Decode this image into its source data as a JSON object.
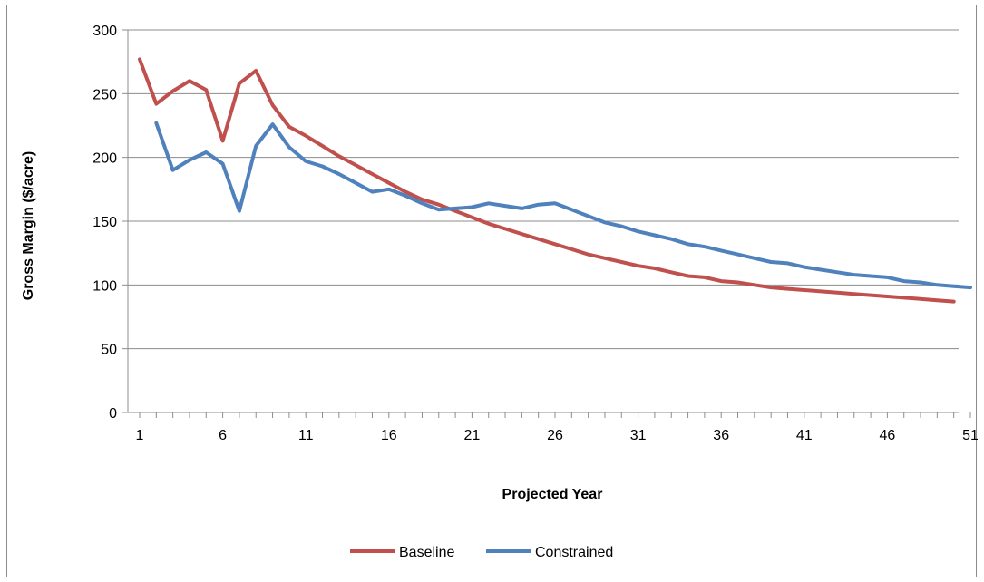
{
  "chart_data": {
    "type": "line",
    "title": "",
    "xlabel": "Projected Year",
    "ylabel": "Gross Margin  ($/acre)",
    "ylim": [
      0,
      300
    ],
    "yticks": [
      "0",
      "50",
      "100",
      "150",
      "200",
      "250",
      "300"
    ],
    "xticks": [
      "1",
      "6",
      "11",
      "16",
      "21",
      "26",
      "31",
      "36",
      "41",
      "46",
      "51"
    ],
    "xlim": [
      1,
      51
    ],
    "grid": "horizontal",
    "legend": "bottom",
    "series": [
      {
        "name": "Baseline",
        "color": "#c0504d",
        "x": [
          1,
          2,
          3,
          4,
          5,
          6,
          7,
          8,
          9,
          10,
          11,
          12,
          13,
          14,
          15,
          16,
          17,
          18,
          19,
          20,
          21,
          22,
          23,
          24,
          25,
          26,
          27,
          28,
          29,
          30,
          31,
          32,
          33,
          34,
          35,
          36,
          37,
          38,
          39,
          40,
          41,
          42,
          43,
          44,
          45,
          46,
          47,
          48,
          49,
          50
        ],
        "y": [
          277,
          242,
          252,
          260,
          253,
          213,
          258,
          268,
          241,
          224,
          217,
          209,
          201,
          194,
          187,
          180,
          173,
          167,
          163,
          158,
          153,
          148,
          144,
          140,
          136,
          132,
          128,
          124,
          121,
          118,
          115,
          113,
          110,
          107,
          106,
          103,
          102,
          100,
          98,
          97,
          96,
          95,
          94,
          93,
          92,
          91,
          90,
          89,
          88,
          87
        ]
      },
      {
        "name": "Constrained",
        "color": "#4f81bd",
        "x": [
          2,
          3,
          4,
          5,
          6,
          7,
          8,
          9,
          10,
          11,
          12,
          13,
          14,
          15,
          16,
          17,
          18,
          19,
          20,
          21,
          22,
          23,
          24,
          25,
          26,
          27,
          28,
          29,
          30,
          31,
          32,
          33,
          34,
          35,
          36,
          37,
          38,
          39,
          40,
          41,
          42,
          43,
          44,
          45,
          46,
          47,
          48,
          49,
          50,
          51
        ],
        "y": [
          227,
          190,
          198,
          204,
          195,
          158,
          209,
          226,
          208,
          197,
          193,
          187,
          180,
          173,
          175,
          170,
          164,
          159,
          160,
          161,
          164,
          162,
          160,
          163,
          164,
          159,
          154,
          149,
          146,
          142,
          139,
          136,
          132,
          130,
          127,
          124,
          121,
          118,
          117,
          114,
          112,
          110,
          108,
          107,
          106,
          103,
          102,
          100,
          99,
          98
        ]
      }
    ]
  }
}
